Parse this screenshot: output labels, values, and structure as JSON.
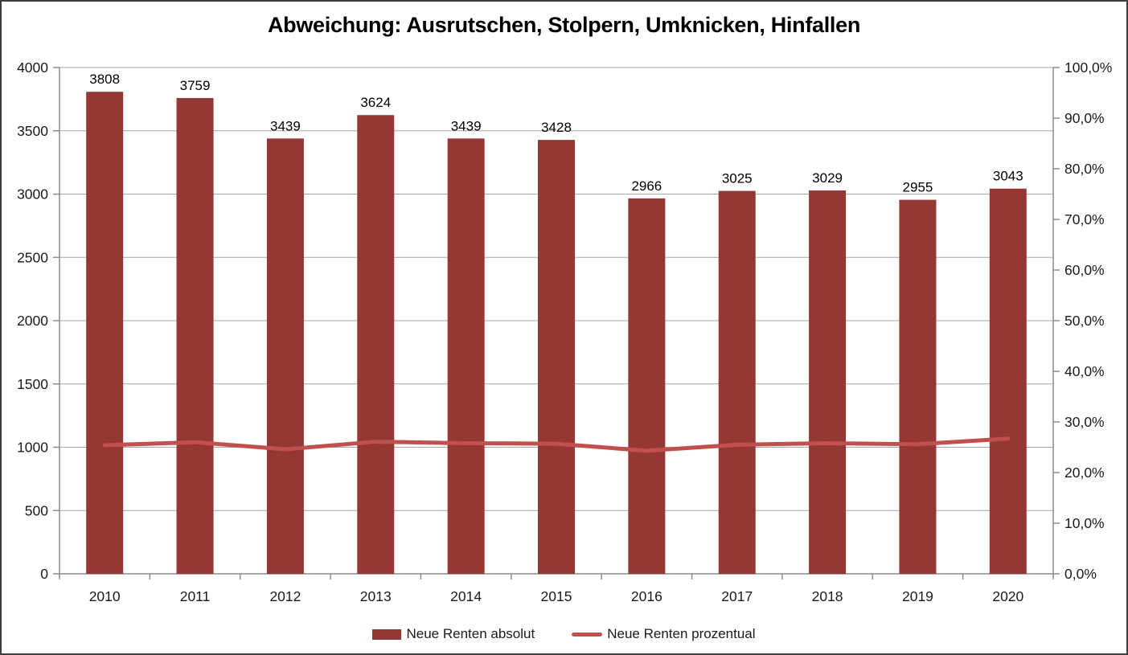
{
  "title": "Abweichung: Ausrutschen, Stolpern, Umknicken, Hinfallen",
  "colors": {
    "bar": "#953735",
    "line": "#C0504D",
    "gridline": "#a6a6a6",
    "axis": "#8c8c8c",
    "text": "#1a1a1a"
  },
  "chart_data": {
    "type": "bar",
    "subtype": "combo-bar-line-dual-axis",
    "title": "Abweichung: Ausrutschen, Stolpern, Umknicken, Hinfallen",
    "categories": [
      "2010",
      "2011",
      "2012",
      "2013",
      "2014",
      "2015",
      "2016",
      "2017",
      "2018",
      "2019",
      "2020"
    ],
    "series": [
      {
        "name": "Neue Renten absolut",
        "type": "bar",
        "axis": "left",
        "color": "#953735",
        "values": [
          3808,
          3759,
          3439,
          3624,
          3439,
          3428,
          2966,
          3025,
          3029,
          2955,
          3043
        ],
        "data_labels": [
          "3808",
          "3759",
          "3439",
          "3624",
          "3439",
          "3428",
          "2966",
          "3025",
          "3029",
          "2955",
          "3043"
        ]
      },
      {
        "name": "Neue Renten prozentual",
        "type": "line",
        "axis": "right",
        "color": "#C0504D",
        "values": [
          25.4,
          26.0,
          24.6,
          26.1,
          25.8,
          25.7,
          24.3,
          25.5,
          25.8,
          25.6,
          26.7
        ]
      }
    ],
    "left_axis": {
      "min": 0,
      "max": 4000,
      "tick_step": 500,
      "tick_labels": [
        "0",
        "500",
        "1000",
        "1500",
        "2000",
        "2500",
        "3000",
        "3500",
        "4000"
      ]
    },
    "right_axis": {
      "min": 0,
      "max": 100,
      "tick_step": 10,
      "tick_labels": [
        "0,0%",
        "10,0%",
        "20,0%",
        "30,0%",
        "40,0%",
        "50,0%",
        "60,0%",
        "70,0%",
        "80,0%",
        "90,0%",
        "100,0%"
      ]
    },
    "grid": true,
    "legend_position": "bottom"
  },
  "legend": {
    "bar_label": "Neue Renten absolut",
    "line_label": "Neue Renten prozentual"
  }
}
